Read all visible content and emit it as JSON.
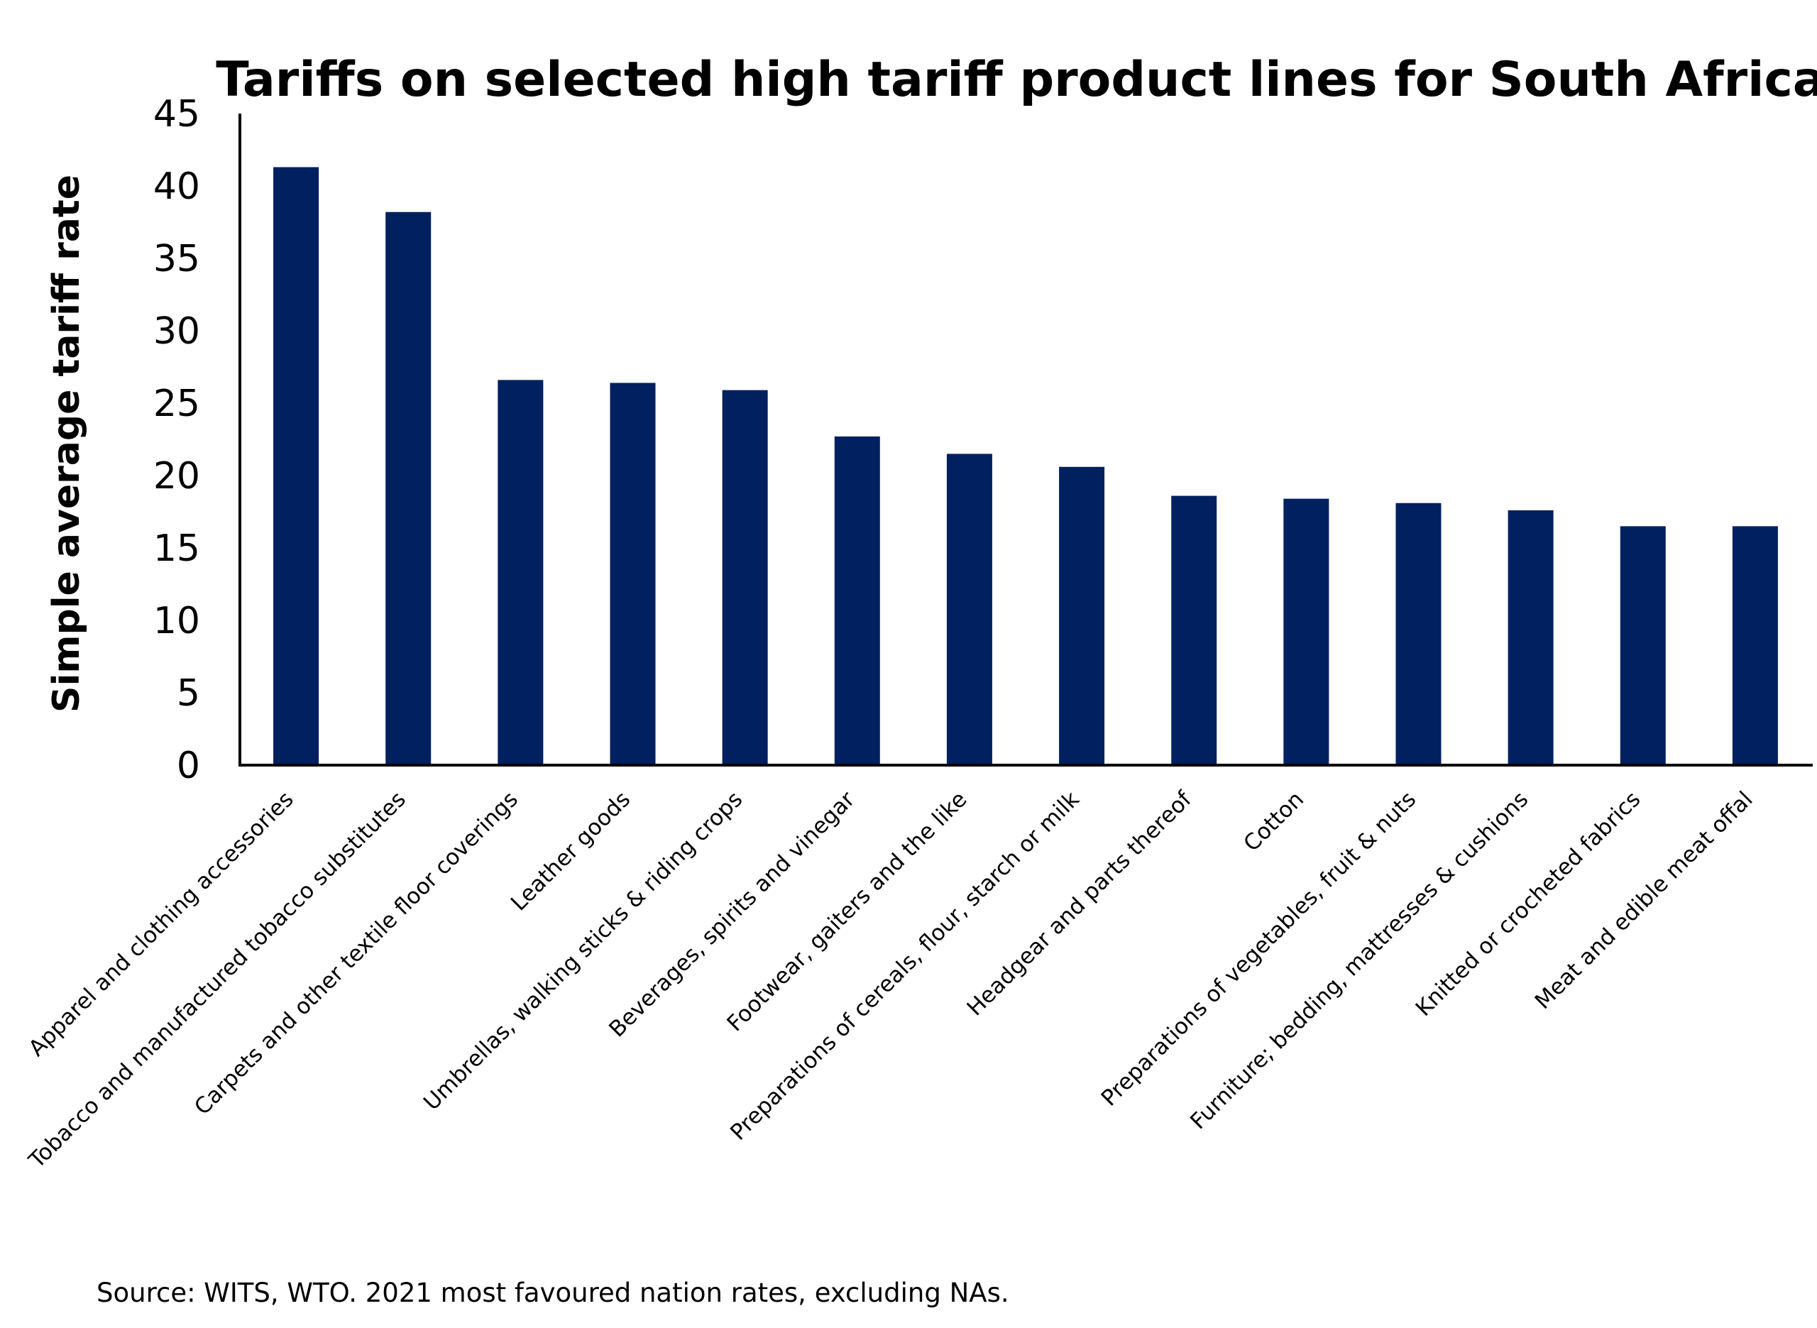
{
  "chart_data": {
    "type": "bar",
    "title": "Tariffs on selected high tariff product lines for South Africa",
    "xlabel": "",
    "ylabel": "Simple average tariff rate",
    "ylim": [
      0,
      45
    ],
    "yticks": [
      0,
      5,
      10,
      15,
      20,
      25,
      30,
      35,
      40,
      45
    ],
    "grid": false,
    "legend": "none",
    "bar_color": "#002060",
    "categories": [
      "Apparel and clothing accessories",
      "Tobacco and manufactured tobacco substitutes",
      "Carpets and other textile floor coverings",
      "Leather goods",
      "Umbrellas, walking sticks & riding crops",
      "Beverages, spirits and vinegar",
      "Footwear, gaiters and the like",
      "Preparations of cereals, flour, starch or milk",
      "Headgear and parts thereof",
      "Cotton",
      "Preparations of vegetables, fruit & nuts",
      "Furniture; bedding, mattresses & cushions",
      "Knitted or crocheted fabrics",
      "Meat and edible meat offal"
    ],
    "values": [
      41.3,
      38.2,
      26.6,
      26.4,
      25.9,
      22.7,
      21.5,
      20.6,
      18.6,
      18.4,
      18.1,
      17.6,
      16.5,
      16.5
    ]
  },
  "footer": {
    "source": "Source: WITS, WTO. 2021 most favoured nation rates, excluding NAs."
  }
}
